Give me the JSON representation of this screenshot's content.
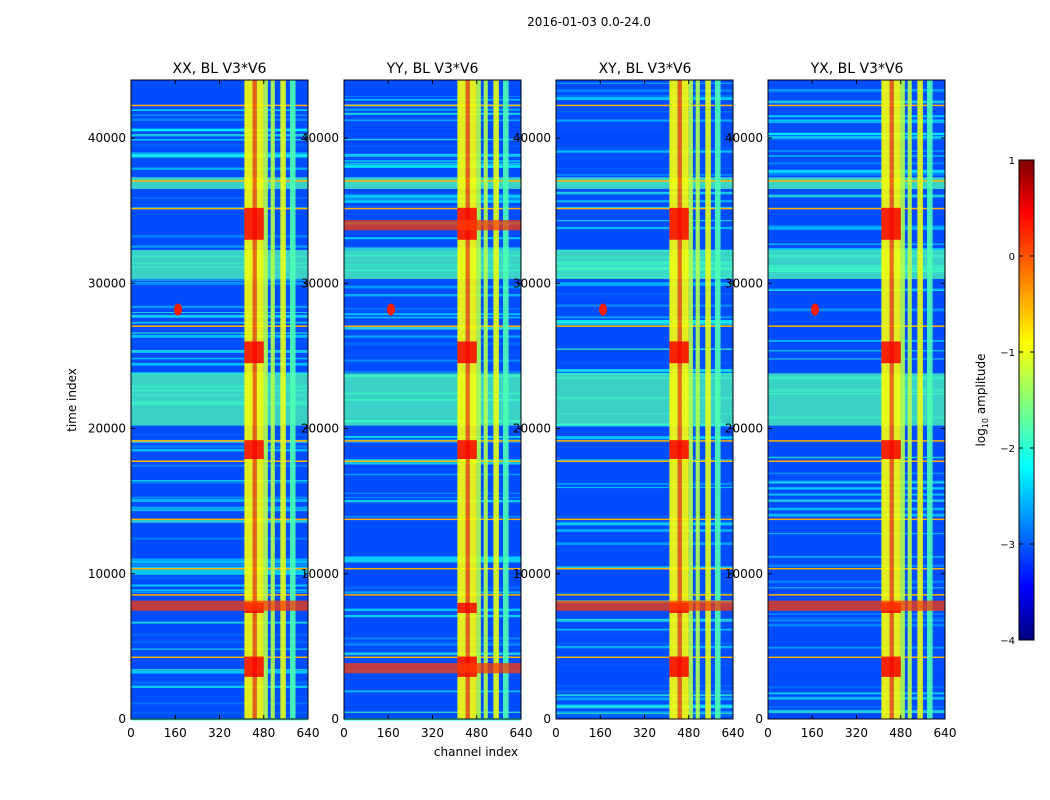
{
  "figure": {
    "suptitle": "2016-01-03 0.0-24.0",
    "xlabel": "channel index",
    "ylabel": "time index"
  },
  "colorbar": {
    "label": "log$_{10}$ amplitude",
    "label_main": "log",
    "label_sub": "10",
    "label_tail": " amplitude",
    "ticks": [
      1,
      0,
      -1,
      -2,
      -3,
      -4
    ],
    "tick_labels": [
      "1",
      "0",
      "−1",
      "−2",
      "−3",
      "−4"
    ],
    "range": [
      -4,
      1
    ],
    "colormap": "jet"
  },
  "chart_data": [
    {
      "type": "heatmap",
      "title": "XX, BL V3*V6",
      "xlim": [
        0,
        640
      ],
      "ylim": [
        0,
        44000
      ],
      "xticks": [
        0,
        160,
        320,
        480,
        640
      ],
      "yticks": [
        0,
        10000,
        20000,
        30000,
        40000
      ],
      "xlabel": "",
      "ylabel": "time index",
      "source_blip": 1,
      "loud_bands": [
        7800
      ]
    },
    {
      "type": "heatmap",
      "title": "YY, BL V3*V6",
      "xlim": [
        0,
        640
      ],
      "ylim": [
        0,
        44000
      ],
      "xticks": [
        0,
        160,
        320,
        480,
        640
      ],
      "yticks": [
        0,
        10000,
        20000,
        30000,
        40000
      ],
      "xlabel": "channel index",
      "ylabel": "",
      "source_blip": 1,
      "loud_bands": [
        3500,
        34000
      ]
    },
    {
      "type": "heatmap",
      "title": "XY, BL V3*V6",
      "xlim": [
        0,
        640
      ],
      "ylim": [
        0,
        44000
      ],
      "xticks": [
        0,
        160,
        320,
        480,
        640
      ],
      "yticks": [
        0,
        10000,
        20000,
        30000,
        40000
      ],
      "xlabel": "",
      "ylabel": "",
      "source_blip": 1,
      "loud_bands": [
        7800
      ]
    },
    {
      "type": "heatmap",
      "title": "YX, BL V3*V6",
      "xlim": [
        0,
        640
      ],
      "ylim": [
        0,
        44000
      ],
      "xticks": [
        0,
        160,
        320,
        480,
        640
      ],
      "yticks": [
        0,
        10000,
        20000,
        30000,
        40000
      ],
      "xlabel": "",
      "ylabel": "",
      "source_blip": 1,
      "loud_bands": [
        7800
      ]
    }
  ],
  "colors": {
    "jet_low": "#00007f",
    "jet_high": "#7f0000",
    "axis": "#000000"
  }
}
